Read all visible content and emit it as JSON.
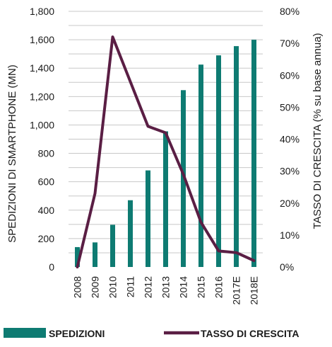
{
  "chart_data": {
    "type": "bar",
    "categories": [
      "2008",
      "2009",
      "2010",
      "2011",
      "2012",
      "2013",
      "2014",
      "2015",
      "2016",
      "2017E",
      "2018E"
    ],
    "series": [
      {
        "name": "SPEDIZIONI",
        "type": "bar",
        "axis": "left",
        "values": [
          140,
          173,
          297,
          470,
          680,
          955,
          1245,
          1425,
          1490,
          1555,
          1600
        ],
        "color": "#0e7b72"
      },
      {
        "name": "TASSO DI CRESCITA",
        "type": "line",
        "axis": "right",
        "values": [
          0,
          23,
          72,
          58,
          44,
          42,
          29,
          14,
          5,
          4.5,
          2
        ],
        "color": "#5a1e44"
      }
    ],
    "ylabel_left": "SPEDIZIONI DI SMARTPHONE (MN)",
    "ylabel_right": "TASSO DI CRESCITA (% su base annua)",
    "ylim_left": [
      0,
      1800
    ],
    "ylim_right": [
      0,
      80
    ],
    "yticks_left": [
      "0",
      "200",
      "400",
      "600",
      "800",
      "1,000",
      "1,200",
      "1,400",
      "1,600",
      "1,800"
    ],
    "yticks_right": [
      "0%",
      "10%",
      "20%",
      "30%",
      "40%",
      "50%",
      "60%",
      "70%",
      "80%"
    ],
    "grid": true,
    "legend": "bottom"
  }
}
